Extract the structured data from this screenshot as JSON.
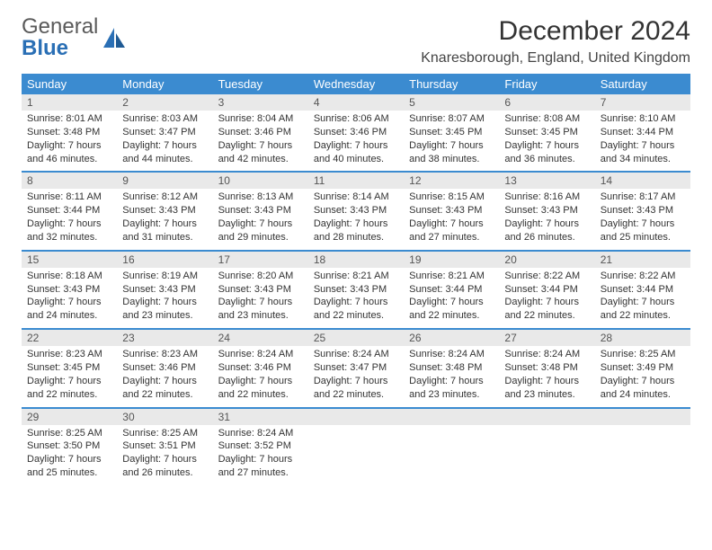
{
  "brand": {
    "part1": "General",
    "part2": "Blue"
  },
  "colors": {
    "brand_blue": "#2a6fb5",
    "header_blue": "#3b8bd0",
    "daynum_bg": "#e9e9e9",
    "text": "#333333",
    "white": "#ffffff"
  },
  "title": "December 2024",
  "location": "Knaresborough, England, United Kingdom",
  "day_names": [
    "Sunday",
    "Monday",
    "Tuesday",
    "Wednesday",
    "Thursday",
    "Friday",
    "Saturday"
  ],
  "weeks": [
    {
      "nums": [
        "1",
        "2",
        "3",
        "4",
        "5",
        "6",
        "7"
      ],
      "cells": [
        {
          "sunrise": "Sunrise: 8:01 AM",
          "sunset": "Sunset: 3:48 PM",
          "day1": "Daylight: 7 hours",
          "day2": "and 46 minutes."
        },
        {
          "sunrise": "Sunrise: 8:03 AM",
          "sunset": "Sunset: 3:47 PM",
          "day1": "Daylight: 7 hours",
          "day2": "and 44 minutes."
        },
        {
          "sunrise": "Sunrise: 8:04 AM",
          "sunset": "Sunset: 3:46 PM",
          "day1": "Daylight: 7 hours",
          "day2": "and 42 minutes."
        },
        {
          "sunrise": "Sunrise: 8:06 AM",
          "sunset": "Sunset: 3:46 PM",
          "day1": "Daylight: 7 hours",
          "day2": "and 40 minutes."
        },
        {
          "sunrise": "Sunrise: 8:07 AM",
          "sunset": "Sunset: 3:45 PM",
          "day1": "Daylight: 7 hours",
          "day2": "and 38 minutes."
        },
        {
          "sunrise": "Sunrise: 8:08 AM",
          "sunset": "Sunset: 3:45 PM",
          "day1": "Daylight: 7 hours",
          "day2": "and 36 minutes."
        },
        {
          "sunrise": "Sunrise: 8:10 AM",
          "sunset": "Sunset: 3:44 PM",
          "day1": "Daylight: 7 hours",
          "day2": "and 34 minutes."
        }
      ]
    },
    {
      "nums": [
        "8",
        "9",
        "10",
        "11",
        "12",
        "13",
        "14"
      ],
      "cells": [
        {
          "sunrise": "Sunrise: 8:11 AM",
          "sunset": "Sunset: 3:44 PM",
          "day1": "Daylight: 7 hours",
          "day2": "and 32 minutes."
        },
        {
          "sunrise": "Sunrise: 8:12 AM",
          "sunset": "Sunset: 3:43 PM",
          "day1": "Daylight: 7 hours",
          "day2": "and 31 minutes."
        },
        {
          "sunrise": "Sunrise: 8:13 AM",
          "sunset": "Sunset: 3:43 PM",
          "day1": "Daylight: 7 hours",
          "day2": "and 29 minutes."
        },
        {
          "sunrise": "Sunrise: 8:14 AM",
          "sunset": "Sunset: 3:43 PM",
          "day1": "Daylight: 7 hours",
          "day2": "and 28 minutes."
        },
        {
          "sunrise": "Sunrise: 8:15 AM",
          "sunset": "Sunset: 3:43 PM",
          "day1": "Daylight: 7 hours",
          "day2": "and 27 minutes."
        },
        {
          "sunrise": "Sunrise: 8:16 AM",
          "sunset": "Sunset: 3:43 PM",
          "day1": "Daylight: 7 hours",
          "day2": "and 26 minutes."
        },
        {
          "sunrise": "Sunrise: 8:17 AM",
          "sunset": "Sunset: 3:43 PM",
          "day1": "Daylight: 7 hours",
          "day2": "and 25 minutes."
        }
      ]
    },
    {
      "nums": [
        "15",
        "16",
        "17",
        "18",
        "19",
        "20",
        "21"
      ],
      "cells": [
        {
          "sunrise": "Sunrise: 8:18 AM",
          "sunset": "Sunset: 3:43 PM",
          "day1": "Daylight: 7 hours",
          "day2": "and 24 minutes."
        },
        {
          "sunrise": "Sunrise: 8:19 AM",
          "sunset": "Sunset: 3:43 PM",
          "day1": "Daylight: 7 hours",
          "day2": "and 23 minutes."
        },
        {
          "sunrise": "Sunrise: 8:20 AM",
          "sunset": "Sunset: 3:43 PM",
          "day1": "Daylight: 7 hours",
          "day2": "and 23 minutes."
        },
        {
          "sunrise": "Sunrise: 8:21 AM",
          "sunset": "Sunset: 3:43 PM",
          "day1": "Daylight: 7 hours",
          "day2": "and 22 minutes."
        },
        {
          "sunrise": "Sunrise: 8:21 AM",
          "sunset": "Sunset: 3:44 PM",
          "day1": "Daylight: 7 hours",
          "day2": "and 22 minutes."
        },
        {
          "sunrise": "Sunrise: 8:22 AM",
          "sunset": "Sunset: 3:44 PM",
          "day1": "Daylight: 7 hours",
          "day2": "and 22 minutes."
        },
        {
          "sunrise": "Sunrise: 8:22 AM",
          "sunset": "Sunset: 3:44 PM",
          "day1": "Daylight: 7 hours",
          "day2": "and 22 minutes."
        }
      ]
    },
    {
      "nums": [
        "22",
        "23",
        "24",
        "25",
        "26",
        "27",
        "28"
      ],
      "cells": [
        {
          "sunrise": "Sunrise: 8:23 AM",
          "sunset": "Sunset: 3:45 PM",
          "day1": "Daylight: 7 hours",
          "day2": "and 22 minutes."
        },
        {
          "sunrise": "Sunrise: 8:23 AM",
          "sunset": "Sunset: 3:46 PM",
          "day1": "Daylight: 7 hours",
          "day2": "and 22 minutes."
        },
        {
          "sunrise": "Sunrise: 8:24 AM",
          "sunset": "Sunset: 3:46 PM",
          "day1": "Daylight: 7 hours",
          "day2": "and 22 minutes."
        },
        {
          "sunrise": "Sunrise: 8:24 AM",
          "sunset": "Sunset: 3:47 PM",
          "day1": "Daylight: 7 hours",
          "day2": "and 22 minutes."
        },
        {
          "sunrise": "Sunrise: 8:24 AM",
          "sunset": "Sunset: 3:48 PM",
          "day1": "Daylight: 7 hours",
          "day2": "and 23 minutes."
        },
        {
          "sunrise": "Sunrise: 8:24 AM",
          "sunset": "Sunset: 3:48 PM",
          "day1": "Daylight: 7 hours",
          "day2": "and 23 minutes."
        },
        {
          "sunrise": "Sunrise: 8:25 AM",
          "sunset": "Sunset: 3:49 PM",
          "day1": "Daylight: 7 hours",
          "day2": "and 24 minutes."
        }
      ]
    },
    {
      "nums": [
        "29",
        "30",
        "31",
        "",
        "",
        "",
        ""
      ],
      "cells": [
        {
          "sunrise": "Sunrise: 8:25 AM",
          "sunset": "Sunset: 3:50 PM",
          "day1": "Daylight: 7 hours",
          "day2": "and 25 minutes."
        },
        {
          "sunrise": "Sunrise: 8:25 AM",
          "sunset": "Sunset: 3:51 PM",
          "day1": "Daylight: 7 hours",
          "day2": "and 26 minutes."
        },
        {
          "sunrise": "Sunrise: 8:24 AM",
          "sunset": "Sunset: 3:52 PM",
          "day1": "Daylight: 7 hours",
          "day2": "and 27 minutes."
        },
        {
          "sunrise": "",
          "sunset": "",
          "day1": "",
          "day2": ""
        },
        {
          "sunrise": "",
          "sunset": "",
          "day1": "",
          "day2": ""
        },
        {
          "sunrise": "",
          "sunset": "",
          "day1": "",
          "day2": ""
        },
        {
          "sunrise": "",
          "sunset": "",
          "day1": "",
          "day2": ""
        }
      ]
    }
  ]
}
